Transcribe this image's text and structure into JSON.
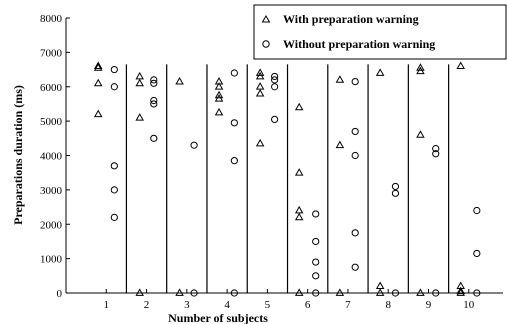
{
  "chart_data": {
    "type": "scatter",
    "xlabel": "Number of subjects",
    "ylabel": "Preparations duration (ms)",
    "ylim": [
      0,
      8000
    ],
    "yticks": [
      0,
      1000,
      2000,
      3000,
      4000,
      5000,
      6000,
      7000,
      8000
    ],
    "xlim": [
      0,
      10.85
    ],
    "xticks": [
      1,
      2,
      3,
      4,
      5,
      6,
      7,
      8,
      9,
      10
    ],
    "subject_separators": [
      1.5,
      2.5,
      3.5,
      4.5,
      5.5,
      6.5,
      7.5,
      8.5,
      9.5
    ],
    "legend_position": "top-right",
    "series": [
      {
        "name": "With preparation warning",
        "marker": "triangle",
        "points": [
          [
            0.8,
            6600
          ],
          [
            0.8,
            6550
          ],
          [
            0.8,
            6100
          ],
          [
            0.8,
            5200
          ],
          [
            1.83,
            6300
          ],
          [
            1.83,
            6100
          ],
          [
            1.83,
            5100
          ],
          [
            1.83,
            0
          ],
          [
            2.82,
            6150
          ],
          [
            2.82,
            0
          ],
          [
            3.8,
            6150
          ],
          [
            3.8,
            6000
          ],
          [
            3.8,
            5750
          ],
          [
            3.8,
            5650
          ],
          [
            3.8,
            5250
          ],
          [
            4.82,
            6400
          ],
          [
            4.82,
            6300
          ],
          [
            4.82,
            6000
          ],
          [
            4.82,
            5800
          ],
          [
            4.82,
            4350
          ],
          [
            5.79,
            5400
          ],
          [
            5.79,
            3500
          ],
          [
            5.79,
            2400
          ],
          [
            5.79,
            2200
          ],
          [
            5.79,
            0
          ],
          [
            6.8,
            6200
          ],
          [
            6.8,
            4300
          ],
          [
            6.8,
            0
          ],
          [
            7.8,
            6400
          ],
          [
            7.8,
            200
          ],
          [
            7.8,
            0
          ],
          [
            8.8,
            6550
          ],
          [
            8.8,
            6450
          ],
          [
            8.8,
            4600
          ],
          [
            8.8,
            0
          ],
          [
            9.8,
            6600
          ],
          [
            9.8,
            200
          ],
          [
            9.8,
            50
          ],
          [
            9.8,
            0
          ]
        ]
      },
      {
        "name": "Without preparation warning",
        "marker": "circle",
        "points": [
          [
            1.2,
            6500
          ],
          [
            1.2,
            6000
          ],
          [
            1.2,
            3700
          ],
          [
            1.2,
            3000
          ],
          [
            1.2,
            2200
          ],
          [
            2.18,
            6200
          ],
          [
            2.18,
            6100
          ],
          [
            2.18,
            5600
          ],
          [
            2.18,
            5500
          ],
          [
            2.18,
            4500
          ],
          [
            3.18,
            4300
          ],
          [
            3.18,
            0
          ],
          [
            4.18,
            6400
          ],
          [
            4.18,
            4950
          ],
          [
            4.18,
            3850
          ],
          [
            4.18,
            0
          ],
          [
            5.18,
            6300
          ],
          [
            5.18,
            6200
          ],
          [
            5.18,
            6000
          ],
          [
            5.18,
            5050
          ],
          [
            6.2,
            2300
          ],
          [
            6.2,
            1500
          ],
          [
            6.2,
            900
          ],
          [
            6.2,
            500
          ],
          [
            6.2,
            0
          ],
          [
            7.18,
            6150
          ],
          [
            7.18,
            4700
          ],
          [
            7.18,
            4000
          ],
          [
            7.18,
            1750
          ],
          [
            7.18,
            750
          ],
          [
            8.18,
            3100
          ],
          [
            8.18,
            2900
          ],
          [
            8.18,
            0
          ],
          [
            9.18,
            4200
          ],
          [
            9.18,
            4050
          ],
          [
            9.18,
            0
          ],
          [
            10.2,
            2400
          ],
          [
            10.2,
            1150
          ],
          [
            10.2,
            0
          ]
        ]
      }
    ]
  }
}
